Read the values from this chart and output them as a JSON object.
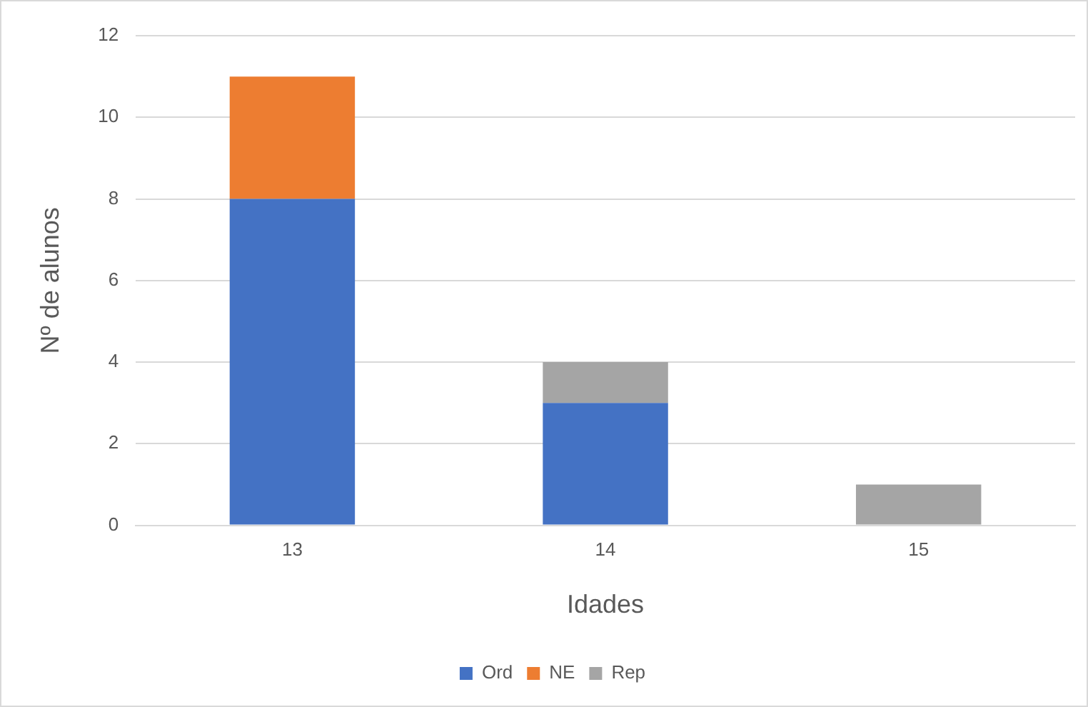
{
  "chart_data": {
    "type": "bar",
    "xlabel": "Idades",
    "ylabel": "Nº de alunos",
    "categories": [
      "13",
      "14",
      "15"
    ],
    "series": [
      {
        "name": "Ord",
        "color": "#4472c4",
        "values": [
          8,
          3,
          0
        ]
      },
      {
        "name": "NE",
        "color": "#ed7d31",
        "values": [
          3,
          0,
          0
        ]
      },
      {
        "name": "Rep",
        "color": "#a5a5a5",
        "values": [
          0,
          1,
          1
        ]
      }
    ],
    "stacked": true,
    "ylim": [
      0,
      12
    ],
    "yticks": [
      0,
      2,
      4,
      6,
      8,
      10,
      12
    ],
    "grid": "y",
    "legend": "bottom"
  }
}
